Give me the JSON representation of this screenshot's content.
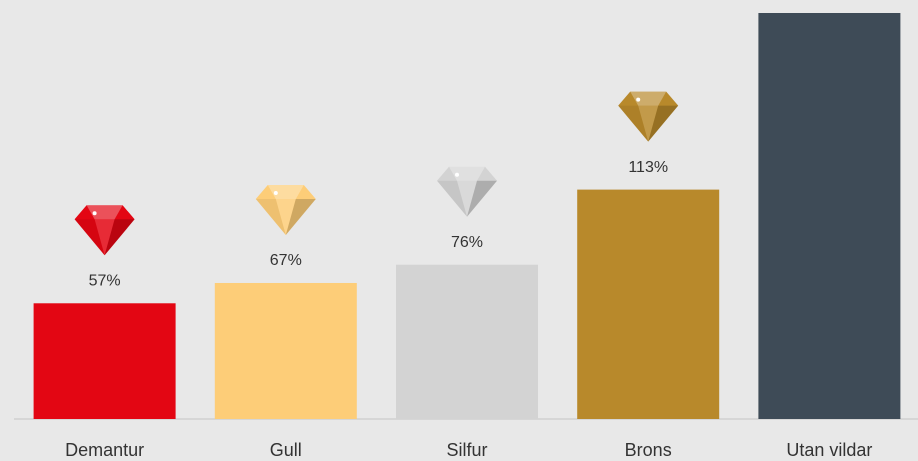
{
  "chart_data": {
    "type": "bar",
    "categories": [
      "Demantur",
      "Gull",
      "Silfur",
      "Brons",
      "Utan vildar"
    ],
    "values": [
      57,
      67,
      76,
      113,
      200
    ],
    "value_labels": [
      "57%",
      "67%",
      "76%",
      "113%",
      null
    ],
    "colors": [
      "#e30613",
      "#fdcd78",
      "#d3d3d3",
      "#b8892b",
      "#3e4b57"
    ],
    "ylim": [
      0,
      200
    ]
  }
}
